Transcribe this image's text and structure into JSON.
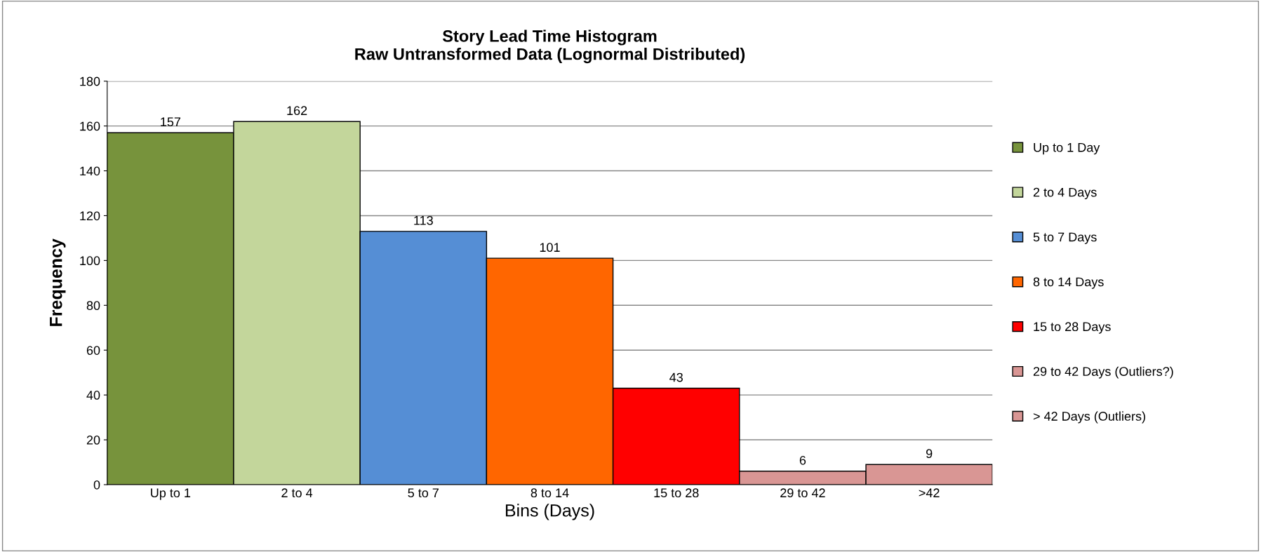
{
  "chart_data": {
    "type": "bar",
    "title": "Story Lead Time Histogram",
    "subtitle": "Raw Untransformed Data (Lognormal Distributed)",
    "xlabel": "Bins (Days)",
    "ylabel": "Frequency",
    "categories": [
      "Up to 1",
      "2 to 4",
      "5 to 7",
      "8 to 14",
      "15 to 28",
      "29 to 42",
      ">42"
    ],
    "series": [
      {
        "name": "Up to 1 Day",
        "color": "#77933c",
        "values": [
          157,
          null,
          null,
          null,
          null,
          null,
          null
        ]
      },
      {
        "name": "2 to 4 Days",
        "color": "#c3d69b",
        "values": [
          null,
          162,
          null,
          null,
          null,
          null,
          null
        ]
      },
      {
        "name": "5 to 7 Days",
        "color": "#558ed5",
        "values": [
          null,
          null,
          113,
          null,
          null,
          null,
          null
        ]
      },
      {
        "name": "8 to 14 Days",
        "color": "#ff6600",
        "values": [
          null,
          null,
          null,
          101,
          null,
          null,
          null
        ]
      },
      {
        "name": "15 to 28 Days",
        "color": "#ff0000",
        "values": [
          null,
          null,
          null,
          null,
          43,
          null,
          null
        ]
      },
      {
        "name": "29 to 42 Days (Outliers?)",
        "color": "#d99694",
        "values": [
          null,
          null,
          null,
          null,
          null,
          6,
          null
        ]
      },
      {
        "name": "> 42 Days (Outliers)",
        "color": "#d99694",
        "values": [
          null,
          null,
          null,
          null,
          null,
          null,
          9
        ]
      }
    ],
    "ylim": [
      0,
      180
    ],
    "yticks": [
      0,
      20,
      40,
      60,
      80,
      100,
      120,
      140,
      160,
      180
    ],
    "grid": "y",
    "legend": "right",
    "data_labels": true
  }
}
